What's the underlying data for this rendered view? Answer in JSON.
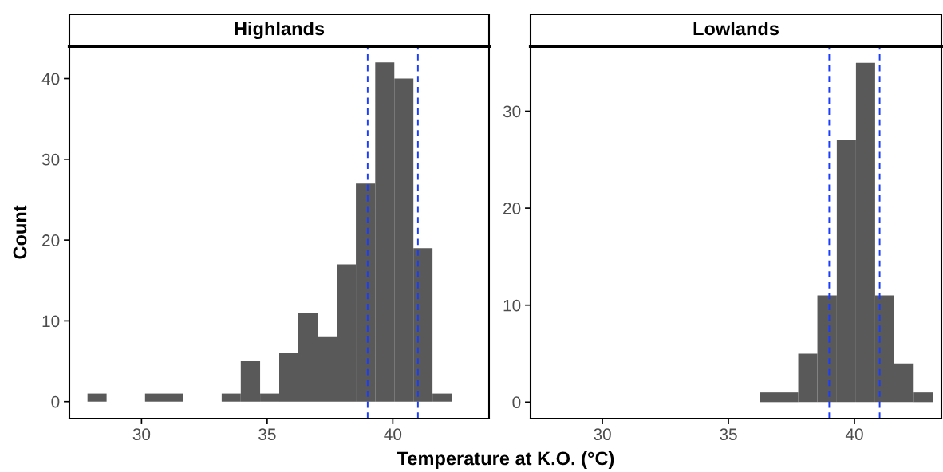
{
  "chart_data": [
    {
      "type": "histogram",
      "title": "Highlands",
      "xlabel": "Temperature at K.O. (°C)",
      "ylabel": "Count",
      "bins": [
        27.85,
        28.61,
        29.38,
        30.14,
        30.9,
        31.67,
        32.43,
        33.19,
        33.95,
        34.72,
        35.48,
        36.24,
        37.01,
        37.77,
        38.53,
        39.3,
        40.06,
        40.82,
        41.58,
        42.35
      ],
      "values": [
        1,
        0,
        0,
        1,
        1,
        0,
        0,
        1,
        5,
        1,
        6,
        11,
        8,
        17,
        27,
        42,
        40,
        19,
        1
      ],
      "color": "#595959",
      "xlim": [
        27.13,
        43.83
      ],
      "xticks": [
        30,
        35,
        40
      ],
      "ylim": [
        -2.1,
        44
      ],
      "yticks": [
        0,
        10,
        20,
        30,
        40
      ],
      "grid": false,
      "ref_lines": [
        {
          "axis": "x",
          "value": 39,
          "color": "#1a3cff",
          "line_style": "dashed"
        },
        {
          "axis": "x",
          "value": 41,
          "color": "#1a3cff",
          "line_style": "dashed"
        }
      ]
    },
    {
      "type": "histogram",
      "title": "Lowlands",
      "bins": [
        36.24,
        37.01,
        37.77,
        38.53,
        39.3,
        40.06,
        40.82,
        41.58,
        42.35,
        43.11
      ],
      "values": [
        1,
        1,
        5,
        11,
        27,
        35,
        11,
        4,
        1
      ],
      "color": "#595959",
      "xlim": [
        27.15,
        43.45
      ],
      "xticks": [
        30,
        35,
        40
      ],
      "ylim": [
        -1.7,
        36.7
      ],
      "yticks": [
        0,
        10,
        20,
        30
      ],
      "grid": false,
      "ref_lines": [
        {
          "axis": "x",
          "value": 39,
          "color": "#1a3cff",
          "line_style": "dashed"
        },
        {
          "axis": "x",
          "value": 41,
          "color": "#1a3cff",
          "line_style": "dashed"
        }
      ]
    }
  ]
}
